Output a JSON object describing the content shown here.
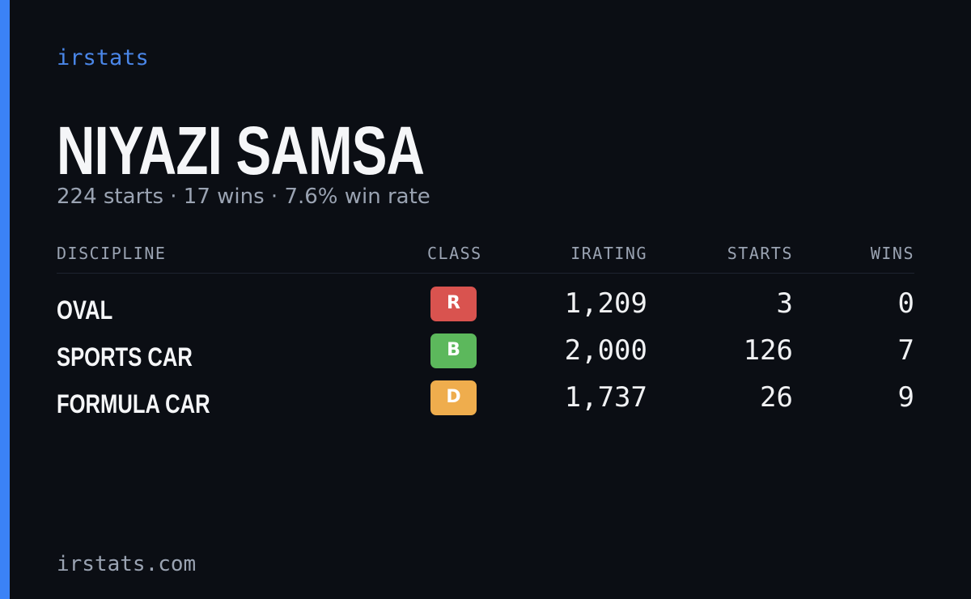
{
  "brand": "irstats",
  "name": "NIYAZI SAMSA",
  "summary": "224 starts · 17 wins · 7.6% win rate",
  "table": {
    "headers": [
      "DISCIPLINE",
      "CLASS",
      "IRATING",
      "STARTS",
      "WINS"
    ],
    "rows": [
      [
        "OVAL",
        "R",
        "1,209",
        "3",
        "0"
      ],
      [
        "SPORTS CAR",
        "B",
        "2,000",
        "126",
        "7"
      ],
      [
        "FORMULA CAR",
        "D",
        "1,737",
        "26",
        "9"
      ]
    ]
  },
  "footer": "irstats.com"
}
